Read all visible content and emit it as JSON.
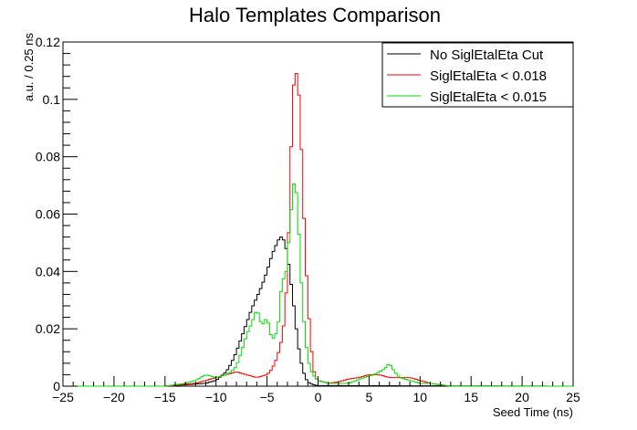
{
  "chart_data": {
    "type": "line",
    "title": "Halo Templates Comparison",
    "xlabel": "Seed Time (ns)",
    "ylabel": "a.u. / 0.25 ns",
    "xlim": [
      -25,
      25
    ],
    "ylim": [
      0,
      0.12
    ],
    "x_ticks": [
      "−25",
      "−20",
      "−15",
      "−10",
      "−5",
      "0",
      "5",
      "10",
      "15",
      "20",
      "25"
    ],
    "y_ticks": [
      "0",
      "0.02",
      "0.04",
      "0.06",
      "0.08",
      "0.1",
      "0.12"
    ],
    "legend_position": "top-right",
    "series": [
      {
        "name": "No SiglEtalEta Cut",
        "color": "#000000",
        "points": [
          [
            -25,
            0.0
          ],
          [
            -15,
            0.0
          ],
          [
            -13,
            0.0005
          ],
          [
            -11,
            0.001
          ],
          [
            -10,
            0.002
          ],
          [
            -9,
            0.005
          ],
          [
            -8.5,
            0.008
          ],
          [
            -8,
            0.012
          ],
          [
            -7.5,
            0.017
          ],
          [
            -7,
            0.022
          ],
          [
            -6.5,
            0.027
          ],
          [
            -6,
            0.031
          ],
          [
            -5.5,
            0.035
          ],
          [
            -5,
            0.04
          ],
          [
            -4.5,
            0.046
          ],
          [
            -4,
            0.05
          ],
          [
            -3.75,
            0.052
          ],
          [
            -3.5,
            0.052
          ],
          [
            -3.25,
            0.05
          ],
          [
            -3,
            0.046
          ],
          [
            -2.75,
            0.039
          ],
          [
            -2.5,
            0.032
          ],
          [
            -2.25,
            0.024
          ],
          [
            -2,
            0.016
          ],
          [
            -1.75,
            0.01
          ],
          [
            -1.5,
            0.006
          ],
          [
            -1.25,
            0.003
          ],
          [
            -1,
            0.0015
          ],
          [
            -0.5,
            0.0005
          ],
          [
            0,
            0.0002
          ],
          [
            25,
            0.0
          ]
        ]
      },
      {
        "name": "SiglEtalEta < 0.018",
        "color": "#ff0000",
        "points": [
          [
            -25,
            0.0
          ],
          [
            -15,
            0.0
          ],
          [
            -12,
            0.001
          ],
          [
            -10,
            0.003
          ],
          [
            -9,
            0.004
          ],
          [
            -8,
            0.005
          ],
          [
            -7,
            0.004
          ],
          [
            -6,
            0.003
          ],
          [
            -5,
            0.004
          ],
          [
            -4.5,
            0.006
          ],
          [
            -4,
            0.01
          ],
          [
            -3.5,
            0.017
          ],
          [
            -3.25,
            0.025
          ],
          [
            -3,
            0.04
          ],
          [
            -2.75,
            0.067
          ],
          [
            -2.5,
            0.1
          ],
          [
            -2.25,
            0.11
          ],
          [
            -2,
            0.108
          ],
          [
            -1.75,
            0.095
          ],
          [
            -1.5,
            0.07
          ],
          [
            -1.25,
            0.047
          ],
          [
            -1,
            0.03
          ],
          [
            -0.75,
            0.017
          ],
          [
            -0.5,
            0.007
          ],
          [
            -0.25,
            0.003
          ],
          [
            0,
            0.002
          ],
          [
            1,
            0.001
          ],
          [
            2,
            0.0015
          ],
          [
            3,
            0.0025
          ],
          [
            4,
            0.003
          ],
          [
            5,
            0.004
          ],
          [
            6,
            0.004
          ],
          [
            7,
            0.003
          ],
          [
            8,
            0.003
          ],
          [
            9,
            0.003
          ],
          [
            10,
            0.002
          ],
          [
            11,
            0.001
          ],
          [
            12,
            0.0005
          ],
          [
            13,
            0.0
          ],
          [
            25,
            0.0
          ]
        ]
      },
      {
        "name": "SiglEtalEta < 0.015",
        "color": "#00dd00",
        "points": [
          [
            -25,
            0.0
          ],
          [
            -15,
            0.0
          ],
          [
            -14,
            0.0005
          ],
          [
            -13,
            0.001
          ],
          [
            -12,
            0.002
          ],
          [
            -11,
            0.004
          ],
          [
            -10,
            0.003
          ],
          [
            -9,
            0.004
          ],
          [
            -8.5,
            0.005
          ],
          [
            -8,
            0.007
          ],
          [
            -7.5,
            0.012
          ],
          [
            -7,
            0.018
          ],
          [
            -6.5,
            0.022
          ],
          [
            -6,
            0.027
          ],
          [
            -5.5,
            0.021
          ],
          [
            -5,
            0.024
          ],
          [
            -4.5,
            0.016
          ],
          [
            -4,
            0.019
          ],
          [
            -3.75,
            0.026
          ],
          [
            -3.5,
            0.04
          ],
          [
            -3.25,
            0.035
          ],
          [
            -3,
            0.045
          ],
          [
            -2.75,
            0.055
          ],
          [
            -2.5,
            0.068
          ],
          [
            -2.25,
            0.073
          ],
          [
            -2,
            0.062
          ],
          [
            -1.75,
            0.044
          ],
          [
            -1.5,
            0.028
          ],
          [
            -1.25,
            0.017
          ],
          [
            -1,
            0.01
          ],
          [
            -0.75,
            0.006
          ],
          [
            -0.5,
            0.004
          ],
          [
            0,
            0.002
          ],
          [
            1,
            0.001
          ],
          [
            2,
            0.001
          ],
          [
            3,
            0.001
          ],
          [
            4.5,
            0.003
          ],
          [
            5.5,
            0.004
          ],
          [
            6.5,
            0.006
          ],
          [
            7,
            0.008
          ],
          [
            7.5,
            0.005
          ],
          [
            8,
            0.003
          ],
          [
            9,
            0.002
          ],
          [
            10,
            0.001
          ],
          [
            11,
            0.001
          ],
          [
            12,
            0.0005
          ],
          [
            13,
            0.0
          ],
          [
            25,
            0.0
          ]
        ]
      }
    ]
  }
}
